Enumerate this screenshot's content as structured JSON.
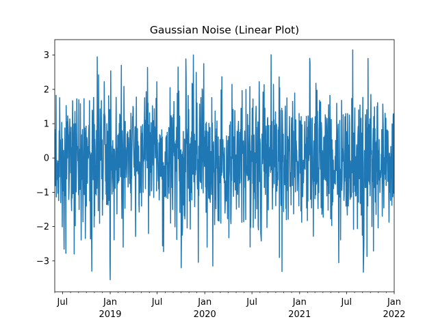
{
  "chart_data": {
    "type": "line",
    "title": "Gaussian Noise (Linear Plot)",
    "xlabel": "",
    "ylabel": "",
    "x_range": [
      "2018-06-01",
      "2022-01-01"
    ],
    "ylim": [
      -3.9,
      3.45
    ],
    "grid": false,
    "color": "#1f77b4",
    "y_ticks": [
      -3,
      -2,
      -1,
      0,
      1,
      2,
      3
    ],
    "y_tick_labels": [
      "−3",
      "−2",
      "−1",
      "0",
      "1",
      "2",
      "3"
    ],
    "x_ticks": [
      {
        "date": "2018-07-01",
        "label": "Jul",
        "sublabel": ""
      },
      {
        "date": "2019-01-01",
        "label": "Jan",
        "sublabel": "2019"
      },
      {
        "date": "2019-07-01",
        "label": "Jul",
        "sublabel": ""
      },
      {
        "date": "2020-01-01",
        "label": "Jan",
        "sublabel": "2020"
      },
      {
        "date": "2020-07-01",
        "label": "Jul",
        "sublabel": ""
      },
      {
        "date": "2021-01-01",
        "label": "Jan",
        "sublabel": "2021"
      },
      {
        "date": "2021-07-01",
        "label": "Jul",
        "sublabel": ""
      },
      {
        "date": "2022-01-01",
        "label": "Jan",
        "sublabel": "2022"
      }
    ],
    "series": [
      {
        "x_start": "2018-06-01",
        "x_step": "1 day",
        "count": 1311,
        "distribution": "gaussian",
        "mean": 0,
        "std": 1,
        "notable_values": [
          {
            "date": "2018-08-15",
            "y": -2.8
          },
          {
            "date": "2018-10-22",
            "y": -3.3
          },
          {
            "date": "2018-11-12",
            "y": 2.95
          },
          {
            "date": "2019-01-01",
            "y": -3.55
          },
          {
            "date": "2019-02-20",
            "y": -2.6
          },
          {
            "date": "2019-09-20",
            "y": 2.65
          },
          {
            "date": "2019-10-02",
            "y": -3.2
          },
          {
            "date": "2019-12-28",
            "y": 2.75
          },
          {
            "date": "2020-01-10",
            "y": -2.6
          },
          {
            "date": "2020-10-15",
            "y": -2.9
          },
          {
            "date": "2021-02-10",
            "y": 2.8
          },
          {
            "date": "2021-06-01",
            "y": -3.05
          },
          {
            "date": "2021-07-25",
            "y": 3.15
          },
          {
            "date": "2021-09-05",
            "y": -2.95
          },
          {
            "date": "2021-09-22",
            "y": 2.9
          }
        ]
      }
    ]
  }
}
